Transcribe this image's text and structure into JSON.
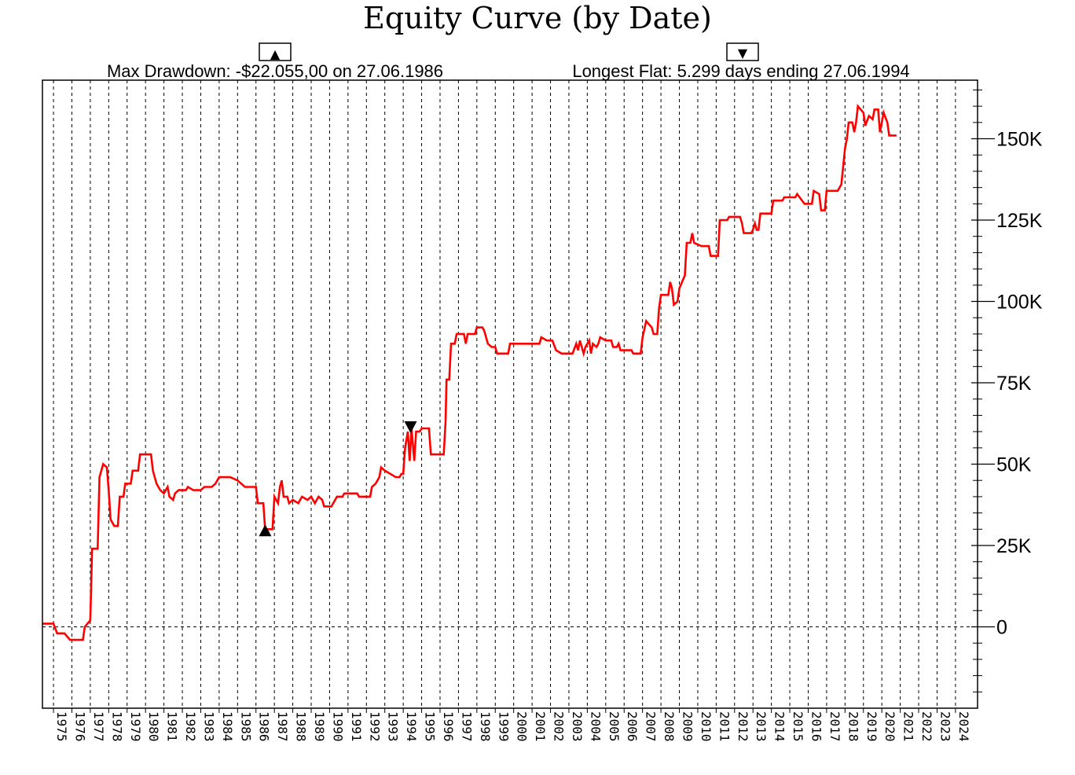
{
  "chart_data": {
    "type": "line",
    "title": "Equity Curve (by Date)",
    "max_drawdown_text": "Max Drawdown: -$22.055,00 on 27.06.1986",
    "longest_flat_text": "Longest Flat: 5.299 days ending 27.06.1994",
    "marker_up_symbol": "▲",
    "marker_down_symbol": "▼",
    "ylim": [
      -25000,
      168000
    ],
    "yticks": [
      0,
      25000,
      50000,
      75000,
      100000,
      125000,
      150000
    ],
    "ytick_labels": [
      "0",
      "25K",
      "50K",
      "75K",
      "100K",
      "125K",
      "150K"
    ],
    "xlim": [
      1974.4,
      2025.2
    ],
    "year_labels": [
      "1975",
      "1976",
      "1977",
      "1978",
      "1979",
      "1980",
      "1981",
      "1982",
      "1983",
      "1984",
      "1985",
      "1986",
      "1987",
      "1988",
      "1989",
      "1990",
      "1991",
      "1992",
      "1993",
      "1994",
      "1995",
      "1996",
      "1997",
      "1998",
      "1999",
      "2000",
      "2001",
      "2002",
      "2003",
      "2004",
      "2005",
      "2006",
      "2007",
      "2008",
      "2009",
      "2010",
      "2011",
      "2012",
      "2013",
      "2014",
      "2015",
      "2016",
      "2017",
      "2018",
      "2019",
      "2020",
      "2021",
      "2022",
      "2023",
      "2024"
    ],
    "grid": true,
    "zero_line": true,
    "drawdown_marker": {
      "x": 1986.5,
      "y": 30000
    },
    "flat_marker": {
      "x": 1994.4,
      "y": 61000
    },
    "series": [
      {
        "color": "#ff0000",
        "points": [
          [
            1974.4,
            1000
          ],
          [
            1975.0,
            1000
          ],
          [
            1975.2,
            -2000
          ],
          [
            1975.6,
            -2000
          ],
          [
            1975.9,
            -4000
          ],
          [
            1976.6,
            -4000
          ],
          [
            1976.7,
            0
          ],
          [
            1977.0,
            2000
          ],
          [
            1977.1,
            24000
          ],
          [
            1977.4,
            24000
          ],
          [
            1977.5,
            46000
          ],
          [
            1977.7,
            50000
          ],
          [
            1977.9,
            49000
          ],
          [
            1978.0,
            42000
          ],
          [
            1978.1,
            33000
          ],
          [
            1978.3,
            31000
          ],
          [
            1978.5,
            31000
          ],
          [
            1978.6,
            40000
          ],
          [
            1978.8,
            40000
          ],
          [
            1978.9,
            44000
          ],
          [
            1979.2,
            44000
          ],
          [
            1979.3,
            48000
          ],
          [
            1979.6,
            48000
          ],
          [
            1979.7,
            53000
          ],
          [
            1980.3,
            53000
          ],
          [
            1980.4,
            48000
          ],
          [
            1980.6,
            44000
          ],
          [
            1980.8,
            42000
          ],
          [
            1981.0,
            41000
          ],
          [
            1981.2,
            43000
          ],
          [
            1981.3,
            40000
          ],
          [
            1981.5,
            39000
          ],
          [
            1981.6,
            41000
          ],
          [
            1981.8,
            42000
          ],
          [
            1982.2,
            42000
          ],
          [
            1982.3,
            43000
          ],
          [
            1982.6,
            42000
          ],
          [
            1983.0,
            42000
          ],
          [
            1983.2,
            43000
          ],
          [
            1983.6,
            43000
          ],
          [
            1983.8,
            44000
          ],
          [
            1984.0,
            46000
          ],
          [
            1984.6,
            46000
          ],
          [
            1985.0,
            45000
          ],
          [
            1985.4,
            43000
          ],
          [
            1986.0,
            43000
          ],
          [
            1986.1,
            38000
          ],
          [
            1986.4,
            38000
          ],
          [
            1986.5,
            30000
          ],
          [
            1986.9,
            30000
          ],
          [
            1987.0,
            40000
          ],
          [
            1987.2,
            38000
          ],
          [
            1987.3,
            43000
          ],
          [
            1987.4,
            45000
          ],
          [
            1987.5,
            40000
          ],
          [
            1987.7,
            40000
          ],
          [
            1987.8,
            38000
          ],
          [
            1988.0,
            39000
          ],
          [
            1988.3,
            38000
          ],
          [
            1988.5,
            40000
          ],
          [
            1988.8,
            39000
          ],
          [
            1989.0,
            40000
          ],
          [
            1989.2,
            38000
          ],
          [
            1989.4,
            40000
          ],
          [
            1989.6,
            39000
          ],
          [
            1989.7,
            37000
          ],
          [
            1990.1,
            37000
          ],
          [
            1990.2,
            38000
          ],
          [
            1990.4,
            40000
          ],
          [
            1990.7,
            40000
          ],
          [
            1990.8,
            41000
          ],
          [
            1991.5,
            41000
          ],
          [
            1991.6,
            40000
          ],
          [
            1992.2,
            40000
          ],
          [
            1992.3,
            43000
          ],
          [
            1992.5,
            44000
          ],
          [
            1992.7,
            46000
          ],
          [
            1992.8,
            49000
          ],
          [
            1993.0,
            48000
          ],
          [
            1993.3,
            47000
          ],
          [
            1993.6,
            46000
          ],
          [
            1993.8,
            46000
          ],
          [
            1993.9,
            47000
          ],
          [
            1994.0,
            47000
          ],
          [
            1994.1,
            55000
          ],
          [
            1994.25,
            60000
          ],
          [
            1994.35,
            51000
          ],
          [
            1994.45,
            61000
          ],
          [
            1994.6,
            51000
          ],
          [
            1994.7,
            60000
          ],
          [
            1994.9,
            60000
          ],
          [
            1995.0,
            61000
          ],
          [
            1995.4,
            61000
          ],
          [
            1995.5,
            53000
          ],
          [
            1996.2,
            53000
          ],
          [
            1996.3,
            63000
          ],
          [
            1996.35,
            76000
          ],
          [
            1996.5,
            76000
          ],
          [
            1996.6,
            87000
          ],
          [
            1996.8,
            87000
          ],
          [
            1996.9,
            90000
          ],
          [
            1997.3,
            90000
          ],
          [
            1997.4,
            87000
          ],
          [
            1997.5,
            90000
          ],
          [
            1997.9,
            90000
          ],
          [
            1998.0,
            92000
          ],
          [
            1998.3,
            92000
          ],
          [
            1998.4,
            91000
          ],
          [
            1998.6,
            87000
          ],
          [
            1998.8,
            86000
          ],
          [
            1999.0,
            86000
          ],
          [
            1999.1,
            84000
          ],
          [
            1999.7,
            84000
          ],
          [
            1999.8,
            87000
          ],
          [
            2001.4,
            87000
          ],
          [
            2001.5,
            89000
          ],
          [
            2001.8,
            88000
          ],
          [
            2002.1,
            88000
          ],
          [
            2002.3,
            85000
          ],
          [
            2002.6,
            84000
          ],
          [
            2003.2,
            84000
          ],
          [
            2003.4,
            87000
          ],
          [
            2003.5,
            85000
          ],
          [
            2003.6,
            88000
          ],
          [
            2003.8,
            84000
          ],
          [
            2003.9,
            86000
          ],
          [
            2004.1,
            88000
          ],
          [
            2004.2,
            84000
          ],
          [
            2004.3,
            87000
          ],
          [
            2004.5,
            86000
          ],
          [
            2004.6,
            87000
          ],
          [
            2004.7,
            89000
          ],
          [
            2005.0,
            88000
          ],
          [
            2005.3,
            88000
          ],
          [
            2005.4,
            86000
          ],
          [
            2005.6,
            86000
          ],
          [
            2005.7,
            87000
          ],
          [
            2005.8,
            85000
          ],
          [
            2006.4,
            85000
          ],
          [
            2006.5,
            84000
          ],
          [
            2006.9,
            84000
          ],
          [
            2007.0,
            89000
          ],
          [
            2007.2,
            94000
          ],
          [
            2007.5,
            92000
          ],
          [
            2007.6,
            90000
          ],
          [
            2007.8,
            90000
          ],
          [
            2007.9,
            98000
          ],
          [
            2008.0,
            102000
          ],
          [
            2008.4,
            102000
          ],
          [
            2008.5,
            106000
          ],
          [
            2008.6,
            104000
          ],
          [
            2008.7,
            99000
          ],
          [
            2008.9,
            100000
          ],
          [
            2009.0,
            104000
          ],
          [
            2009.3,
            108000
          ],
          [
            2009.4,
            118000
          ],
          [
            2009.6,
            118000
          ],
          [
            2009.7,
            121000
          ],
          [
            2009.8,
            118000
          ],
          [
            2010.2,
            117000
          ],
          [
            2010.6,
            117000
          ],
          [
            2010.7,
            114000
          ],
          [
            2011.1,
            114000
          ],
          [
            2011.2,
            125000
          ],
          [
            2011.6,
            125000
          ],
          [
            2011.7,
            126000
          ],
          [
            2012.3,
            126000
          ],
          [
            2012.4,
            124000
          ],
          [
            2012.5,
            121000
          ],
          [
            2012.9,
            121000
          ],
          [
            2013.0,
            122000
          ],
          [
            2013.1,
            124000
          ],
          [
            2013.2,
            122000
          ],
          [
            2013.3,
            122000
          ],
          [
            2013.4,
            127000
          ],
          [
            2014.0,
            127000
          ],
          [
            2014.1,
            131000
          ],
          [
            2014.6,
            131000
          ],
          [
            2014.7,
            132000
          ],
          [
            2015.3,
            132000
          ],
          [
            2015.4,
            133000
          ],
          [
            2015.8,
            130000
          ],
          [
            2016.2,
            130000
          ],
          [
            2016.3,
            134000
          ],
          [
            2016.6,
            133000
          ],
          [
            2016.7,
            128000
          ],
          [
            2016.9,
            128000
          ],
          [
            2017.0,
            134000
          ],
          [
            2017.6,
            134000
          ],
          [
            2017.8,
            136000
          ],
          [
            2018.0,
            147000
          ],
          [
            2018.1,
            150000
          ],
          [
            2018.2,
            155000
          ],
          [
            2018.4,
            155000
          ],
          [
            2018.5,
            152000
          ],
          [
            2018.6,
            155000
          ],
          [
            2018.7,
            160000
          ],
          [
            2019.0,
            158000
          ],
          [
            2019.1,
            154000
          ],
          [
            2019.3,
            157000
          ],
          [
            2019.5,
            156000
          ],
          [
            2019.6,
            159000
          ],
          [
            2019.8,
            159000
          ],
          [
            2019.9,
            152000
          ],
          [
            2020.1,
            158000
          ],
          [
            2020.3,
            155000
          ],
          [
            2020.4,
            151000
          ],
          [
            2020.8,
            151000
          ]
        ]
      }
    ]
  }
}
